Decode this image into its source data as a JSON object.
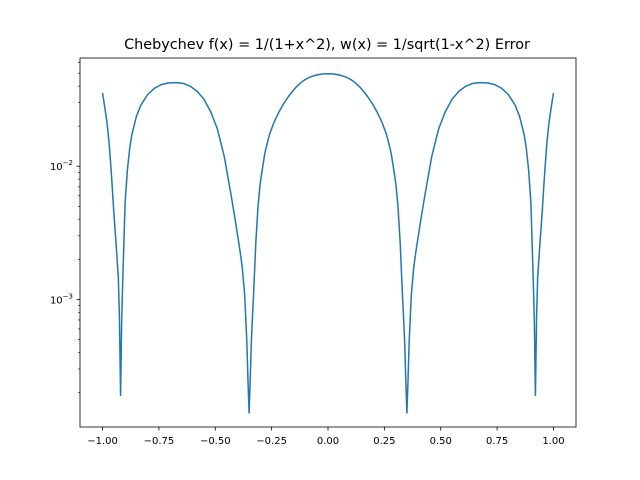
{
  "chart_data": {
    "type": "line",
    "title": "Chebychev f(x) = 1/(1+x^2), w(x) = 1/sqrt(1-x^2) Error",
    "xlabel": "",
    "ylabel": "",
    "yscale": "log",
    "xlim": [
      -1.1,
      1.1
    ],
    "ylim": [
      0.00011,
      0.065
    ],
    "grid": false,
    "legend": "none",
    "line_color": "#1f77b4",
    "x_ticks": [
      {
        "value": -1.0,
        "label": "−1.00"
      },
      {
        "value": -0.75,
        "label": "−0.75"
      },
      {
        "value": -0.5,
        "label": "−0.50"
      },
      {
        "value": -0.25,
        "label": "−0.25"
      },
      {
        "value": 0.0,
        "label": "0.00"
      },
      {
        "value": 0.25,
        "label": "0.25"
      },
      {
        "value": 0.5,
        "label": "0.50"
      },
      {
        "value": 0.75,
        "label": "0.75"
      },
      {
        "value": 1.0,
        "label": "1.00"
      }
    ],
    "y_ticks": [
      {
        "value": 0.01,
        "base": "10",
        "exp": "−2"
      },
      {
        "value": 0.001,
        "base": "10",
        "exp": "−3"
      }
    ],
    "series": [
      {
        "x": [
          -1.0,
          -0.99,
          -0.98,
          -0.97,
          -0.96,
          -0.95,
          -0.94,
          -0.93,
          -0.925,
          -0.92,
          -0.915,
          -0.91,
          -0.9,
          -0.89,
          -0.88,
          -0.87,
          -0.85,
          -0.83,
          -0.8,
          -0.77,
          -0.74,
          -0.71,
          -0.68,
          -0.66,
          -0.64,
          -0.61,
          -0.58,
          -0.55,
          -0.52,
          -0.49,
          -0.46,
          -0.43,
          -0.41,
          -0.39,
          -0.38,
          -0.37,
          -0.365,
          -0.36,
          -0.355,
          -0.35,
          -0.345,
          -0.34,
          -0.335,
          -0.33,
          -0.32,
          -0.31,
          -0.3,
          -0.28,
          -0.26,
          -0.24,
          -0.22,
          -0.2,
          -0.18,
          -0.16,
          -0.14,
          -0.12,
          -0.1,
          -0.08,
          -0.06,
          -0.04,
          -0.02,
          0.0,
          0.02,
          0.04,
          0.06,
          0.08,
          0.1,
          0.12,
          0.14,
          0.16,
          0.18,
          0.2,
          0.22,
          0.24,
          0.26,
          0.28,
          0.3,
          0.31,
          0.32,
          0.33,
          0.335,
          0.34,
          0.345,
          0.35,
          0.355,
          0.36,
          0.365,
          0.37,
          0.38,
          0.39,
          0.41,
          0.43,
          0.46,
          0.49,
          0.52,
          0.55,
          0.58,
          0.61,
          0.64,
          0.66,
          0.68,
          0.71,
          0.74,
          0.77,
          0.8,
          0.83,
          0.85,
          0.87,
          0.88,
          0.89,
          0.9,
          0.91,
          0.915,
          0.92,
          0.925,
          0.93,
          0.94,
          0.95,
          0.96,
          0.97,
          0.98,
          0.99,
          1.0
        ],
        "y": [
          0.0355,
          0.0277,
          0.0211,
          0.0144,
          0.0084,
          0.0045,
          0.00262,
          0.00146,
          0.00072,
          0.00019,
          0.00072,
          0.00146,
          0.0053,
          0.0093,
          0.0134,
          0.0173,
          0.0236,
          0.0288,
          0.0345,
          0.0385,
          0.041,
          0.0422,
          0.0425,
          0.0423,
          0.0418,
          0.0398,
          0.0365,
          0.0318,
          0.0256,
          0.0189,
          0.0118,
          0.0061,
          0.0038,
          0.0023,
          0.00172,
          0.0011,
          0.00074,
          0.00048,
          0.00025,
          0.00014,
          0.00025,
          0.00048,
          0.00074,
          0.0011,
          0.0027,
          0.0051,
          0.0076,
          0.0126,
          0.0172,
          0.0213,
          0.0251,
          0.0289,
          0.0326,
          0.0361,
          0.0395,
          0.0425,
          0.0449,
          0.0467,
          0.048,
          0.0489,
          0.0494,
          0.0495,
          0.0494,
          0.0489,
          0.048,
          0.0467,
          0.0449,
          0.0425,
          0.0395,
          0.0361,
          0.0326,
          0.0289,
          0.0251,
          0.0213,
          0.0172,
          0.0126,
          0.0076,
          0.0051,
          0.0027,
          0.0011,
          0.00074,
          0.00048,
          0.00025,
          0.00014,
          0.00025,
          0.00048,
          0.00074,
          0.0011,
          0.00172,
          0.0023,
          0.0038,
          0.0061,
          0.0118,
          0.0189,
          0.0256,
          0.0318,
          0.0365,
          0.0398,
          0.0418,
          0.0423,
          0.0425,
          0.0422,
          0.041,
          0.0385,
          0.0345,
          0.0288,
          0.0236,
          0.0173,
          0.0134,
          0.0093,
          0.0053,
          0.00146,
          0.00072,
          0.00019,
          0.00072,
          0.00146,
          0.00262,
          0.0045,
          0.0084,
          0.0144,
          0.0211,
          0.0277,
          0.0355
        ]
      }
    ]
  }
}
